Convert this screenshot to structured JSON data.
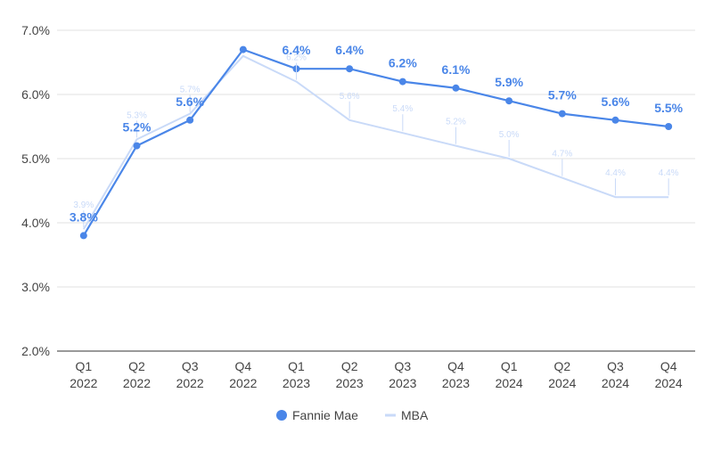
{
  "chart_data": {
    "type": "line",
    "categories": [
      [
        "Q1",
        "2022"
      ],
      [
        "Q2",
        "2022"
      ],
      [
        "Q3",
        "2022"
      ],
      [
        "Q4",
        "2022"
      ],
      [
        "Q1",
        "2023"
      ],
      [
        "Q2",
        "2023"
      ],
      [
        "Q3",
        "2023"
      ],
      [
        "Q4",
        "2023"
      ],
      [
        "Q1",
        "2024"
      ],
      [
        "Q2",
        "2024"
      ],
      [
        "Q3",
        "2024"
      ],
      [
        "Q4",
        "2024"
      ]
    ],
    "series": [
      {
        "name": "Fannie Mae",
        "color": "#4a86e8",
        "values": [
          3.8,
          5.2,
          5.6,
          6.7,
          6.4,
          6.4,
          6.2,
          6.1,
          5.9,
          5.7,
          5.6,
          5.5
        ],
        "labels": [
          "3.8%",
          "5.2%",
          "5.6%",
          "",
          "6.4%",
          "6.4%",
          "6.2%",
          "6.1%",
          "5.9%",
          "5.7%",
          "5.6%",
          "5.5%"
        ],
        "markers": true
      },
      {
        "name": "MBA",
        "color": "#c9daf8",
        "values": [
          3.9,
          5.3,
          5.7,
          6.6,
          6.2,
          5.6,
          5.4,
          5.2,
          5.0,
          4.7,
          4.4,
          4.4
        ],
        "labels": [
          "3.9%",
          "5.3%",
          "5.7%",
          "",
          "6.2%",
          "5.6%",
          "5.4%",
          "5.2%",
          "5.0%",
          "4.7%",
          "4.4%",
          "4.4%"
        ],
        "markers": false
      }
    ],
    "yticks": [
      "2.0%",
      "3.0%",
      "4.0%",
      "5.0%",
      "6.0%",
      "7.0%"
    ],
    "ylim": [
      2.0,
      7.0
    ],
    "grid": true,
    "legend": "bottom-center",
    "title": "",
    "xlabel": "",
    "ylabel": ""
  }
}
